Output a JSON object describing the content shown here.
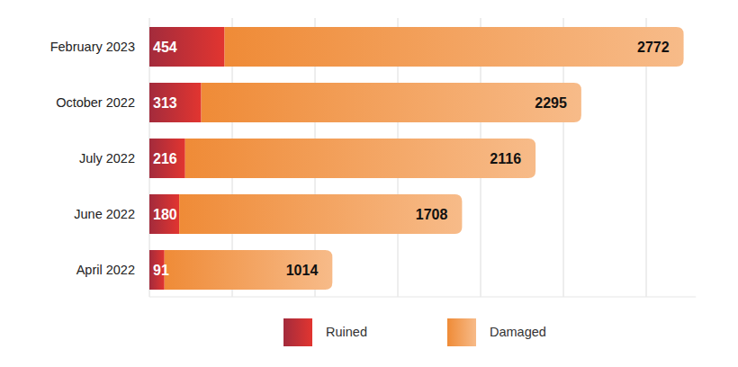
{
  "chart_data": {
    "type": "bar",
    "orientation": "horizontal",
    "stacked": true,
    "data_labels": true,
    "grid": true,
    "tick_labels": false,
    "legend": "bottom",
    "categories": [
      "February 2023",
      "October 2022",
      "July 2022",
      "June 2022",
      "April 2022"
    ],
    "series": [
      {
        "name": "Ruined",
        "color": "#d63a3a",
        "values": [
          454,
          313,
          216,
          180,
          91
        ]
      },
      {
        "name": "Damaged",
        "color": "#f3974a",
        "values": [
          2772,
          2295,
          2116,
          1708,
          1014
        ]
      }
    ],
    "xlim": [
      0,
      3300
    ],
    "xticks": [
      0,
      500,
      1000,
      1500,
      2000,
      2500,
      3000
    ]
  }
}
